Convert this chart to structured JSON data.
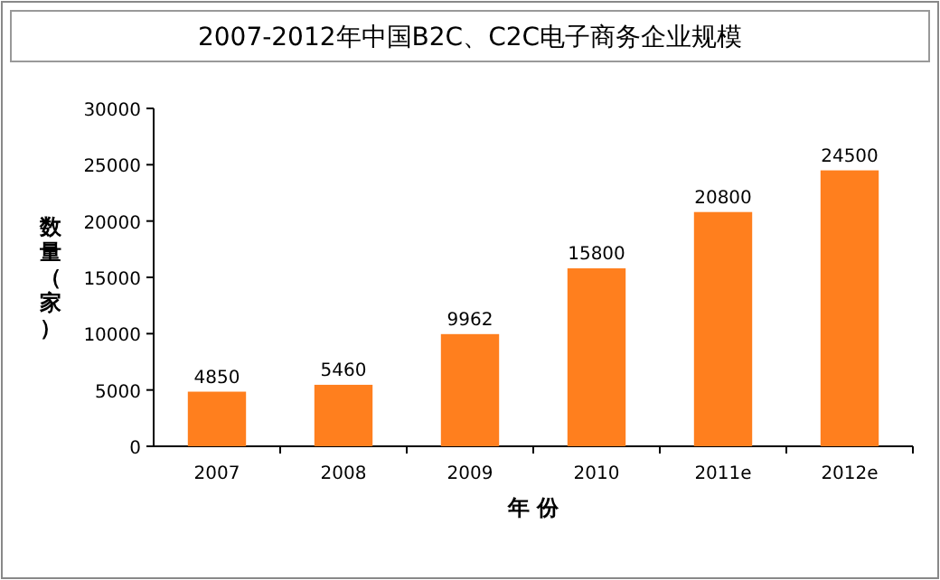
{
  "chart_data": {
    "type": "bar",
    "title": "2007-2012年中国B2C、C2C电子商务企业规模",
    "xlabel": "年 份",
    "ylabel": "数量（家）",
    "categories": [
      "2007",
      "2008",
      "2009",
      "2010",
      "2011e",
      "2012e"
    ],
    "values": [
      4850,
      5460,
      9962,
      15800,
      20800,
      24500
    ],
    "color": "#ff7f1e",
    "ylim": [
      0,
      30000
    ],
    "yticks": [
      0,
      5000,
      10000,
      15000,
      20000,
      25000,
      30000
    ],
    "data_labels": true
  }
}
